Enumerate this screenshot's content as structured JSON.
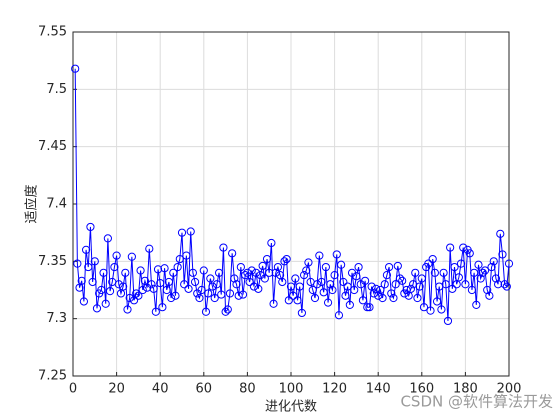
{
  "chart_data": {
    "type": "line",
    "xlabel": "进化代数",
    "ylabel": "适应度",
    "watermark": "CSDN @软件算法开发",
    "xlim": [
      0,
      200
    ],
    "xticks": [
      0,
      20,
      40,
      60,
      80,
      100,
      120,
      140,
      160,
      180,
      200
    ],
    "ylim": [
      7.25,
      7.55
    ],
    "yticks": [
      7.25,
      7.3,
      7.35,
      7.4,
      7.45,
      7.5,
      7.55
    ],
    "grid": true,
    "x": [
      1,
      2,
      3,
      4,
      5,
      6,
      7,
      8,
      9,
      10,
      11,
      12,
      13,
      14,
      15,
      16,
      17,
      18,
      19,
      20,
      21,
      22,
      23,
      24,
      25,
      26,
      27,
      28,
      29,
      30,
      31,
      32,
      33,
      34,
      35,
      36,
      37,
      38,
      39,
      40,
      41,
      42,
      43,
      44,
      45,
      46,
      47,
      48,
      49,
      50,
      51,
      52,
      53,
      54,
      55,
      56,
      57,
      58,
      59,
      60,
      61,
      62,
      63,
      64,
      65,
      66,
      67,
      68,
      69,
      70,
      71,
      72,
      73,
      74,
      75,
      76,
      77,
      78,
      79,
      80,
      81,
      82,
      83,
      84,
      85,
      86,
      87,
      88,
      89,
      90,
      91,
      92,
      93,
      94,
      95,
      96,
      97,
      98,
      99,
      100,
      101,
      102,
      103,
      104,
      105,
      106,
      107,
      108,
      109,
      110,
      111,
      112,
      113,
      114,
      115,
      116,
      117,
      118,
      119,
      120,
      121,
      122,
      123,
      124,
      125,
      126,
      127,
      128,
      129,
      130,
      131,
      132,
      133,
      134,
      135,
      136,
      137,
      138,
      139,
      140,
      141,
      142,
      143,
      144,
      145,
      146,
      147,
      148,
      149,
      150,
      151,
      152,
      153,
      154,
      155,
      156,
      157,
      158,
      159,
      160,
      161,
      162,
      163,
      164,
      165,
      166,
      167,
      168,
      169,
      170,
      171,
      172,
      173,
      174,
      175,
      176,
      177,
      178,
      179,
      180,
      181,
      182,
      183,
      184,
      185,
      186,
      187,
      188,
      189,
      190,
      191,
      192,
      193,
      194,
      195,
      196,
      197,
      198,
      199,
      200
    ],
    "series": [
      {
        "color": "#0000ff",
        "values": [
          7.518,
          7.348,
          7.327,
          7.333,
          7.315,
          7.36,
          7.345,
          7.38,
          7.332,
          7.35,
          7.309,
          7.322,
          7.325,
          7.34,
          7.313,
          7.37,
          7.324,
          7.332,
          7.345,
          7.355,
          7.33,
          7.322,
          7.328,
          7.34,
          7.308,
          7.318,
          7.354,
          7.316,
          7.322,
          7.32,
          7.342,
          7.325,
          7.333,
          7.327,
          7.361,
          7.33,
          7.326,
          7.306,
          7.343,
          7.331,
          7.31,
          7.344,
          7.325,
          7.332,
          7.318,
          7.34,
          7.32,
          7.345,
          7.352,
          7.375,
          7.33,
          7.355,
          7.326,
          7.376,
          7.34,
          7.332,
          7.322,
          7.318,
          7.325,
          7.342,
          7.306,
          7.322,
          7.335,
          7.328,
          7.318,
          7.33,
          7.34,
          7.321,
          7.362,
          7.306,
          7.308,
          7.322,
          7.357,
          7.335,
          7.33,
          7.32,
          7.345,
          7.321,
          7.338,
          7.34,
          7.332,
          7.342,
          7.328,
          7.34,
          7.326,
          7.338,
          7.346,
          7.335,
          7.352,
          7.34,
          7.366,
          7.313,
          7.34,
          7.345,
          7.338,
          7.332,
          7.35,
          7.352,
          7.316,
          7.328,
          7.32,
          7.335,
          7.316,
          7.328,
          7.305,
          7.338,
          7.342,
          7.349,
          7.332,
          7.325,
          7.318,
          7.33,
          7.355,
          7.332,
          7.323,
          7.345,
          7.314,
          7.33,
          7.325,
          7.338,
          7.356,
          7.303,
          7.347,
          7.332,
          7.32,
          7.328,
          7.312,
          7.34,
          7.325,
          7.337,
          7.345,
          7.33,
          7.316,
          7.333,
          7.31,
          7.31,
          7.328,
          7.322,
          7.326,
          7.32,
          7.325,
          7.318,
          7.33,
          7.338,
          7.345,
          7.322,
          7.318,
          7.33,
          7.346,
          7.335,
          7.333,
          7.322,
          7.325,
          7.32,
          7.326,
          7.33,
          7.34,
          7.318,
          7.328,
          7.335,
          7.31,
          7.345,
          7.348,
          7.307,
          7.352,
          7.34,
          7.315,
          7.328,
          7.308,
          7.34,
          7.33,
          7.298,
          7.362,
          7.326,
          7.345,
          7.33,
          7.336,
          7.348,
          7.362,
          7.33,
          7.36,
          7.357,
          7.325,
          7.34,
          7.312,
          7.347,
          7.335,
          7.34,
          7.342,
          7.325,
          7.32,
          7.345,
          7.35,
          7.335,
          7.33,
          7.374,
          7.356,
          7.33,
          7.328,
          7.348
        ]
      }
    ]
  }
}
